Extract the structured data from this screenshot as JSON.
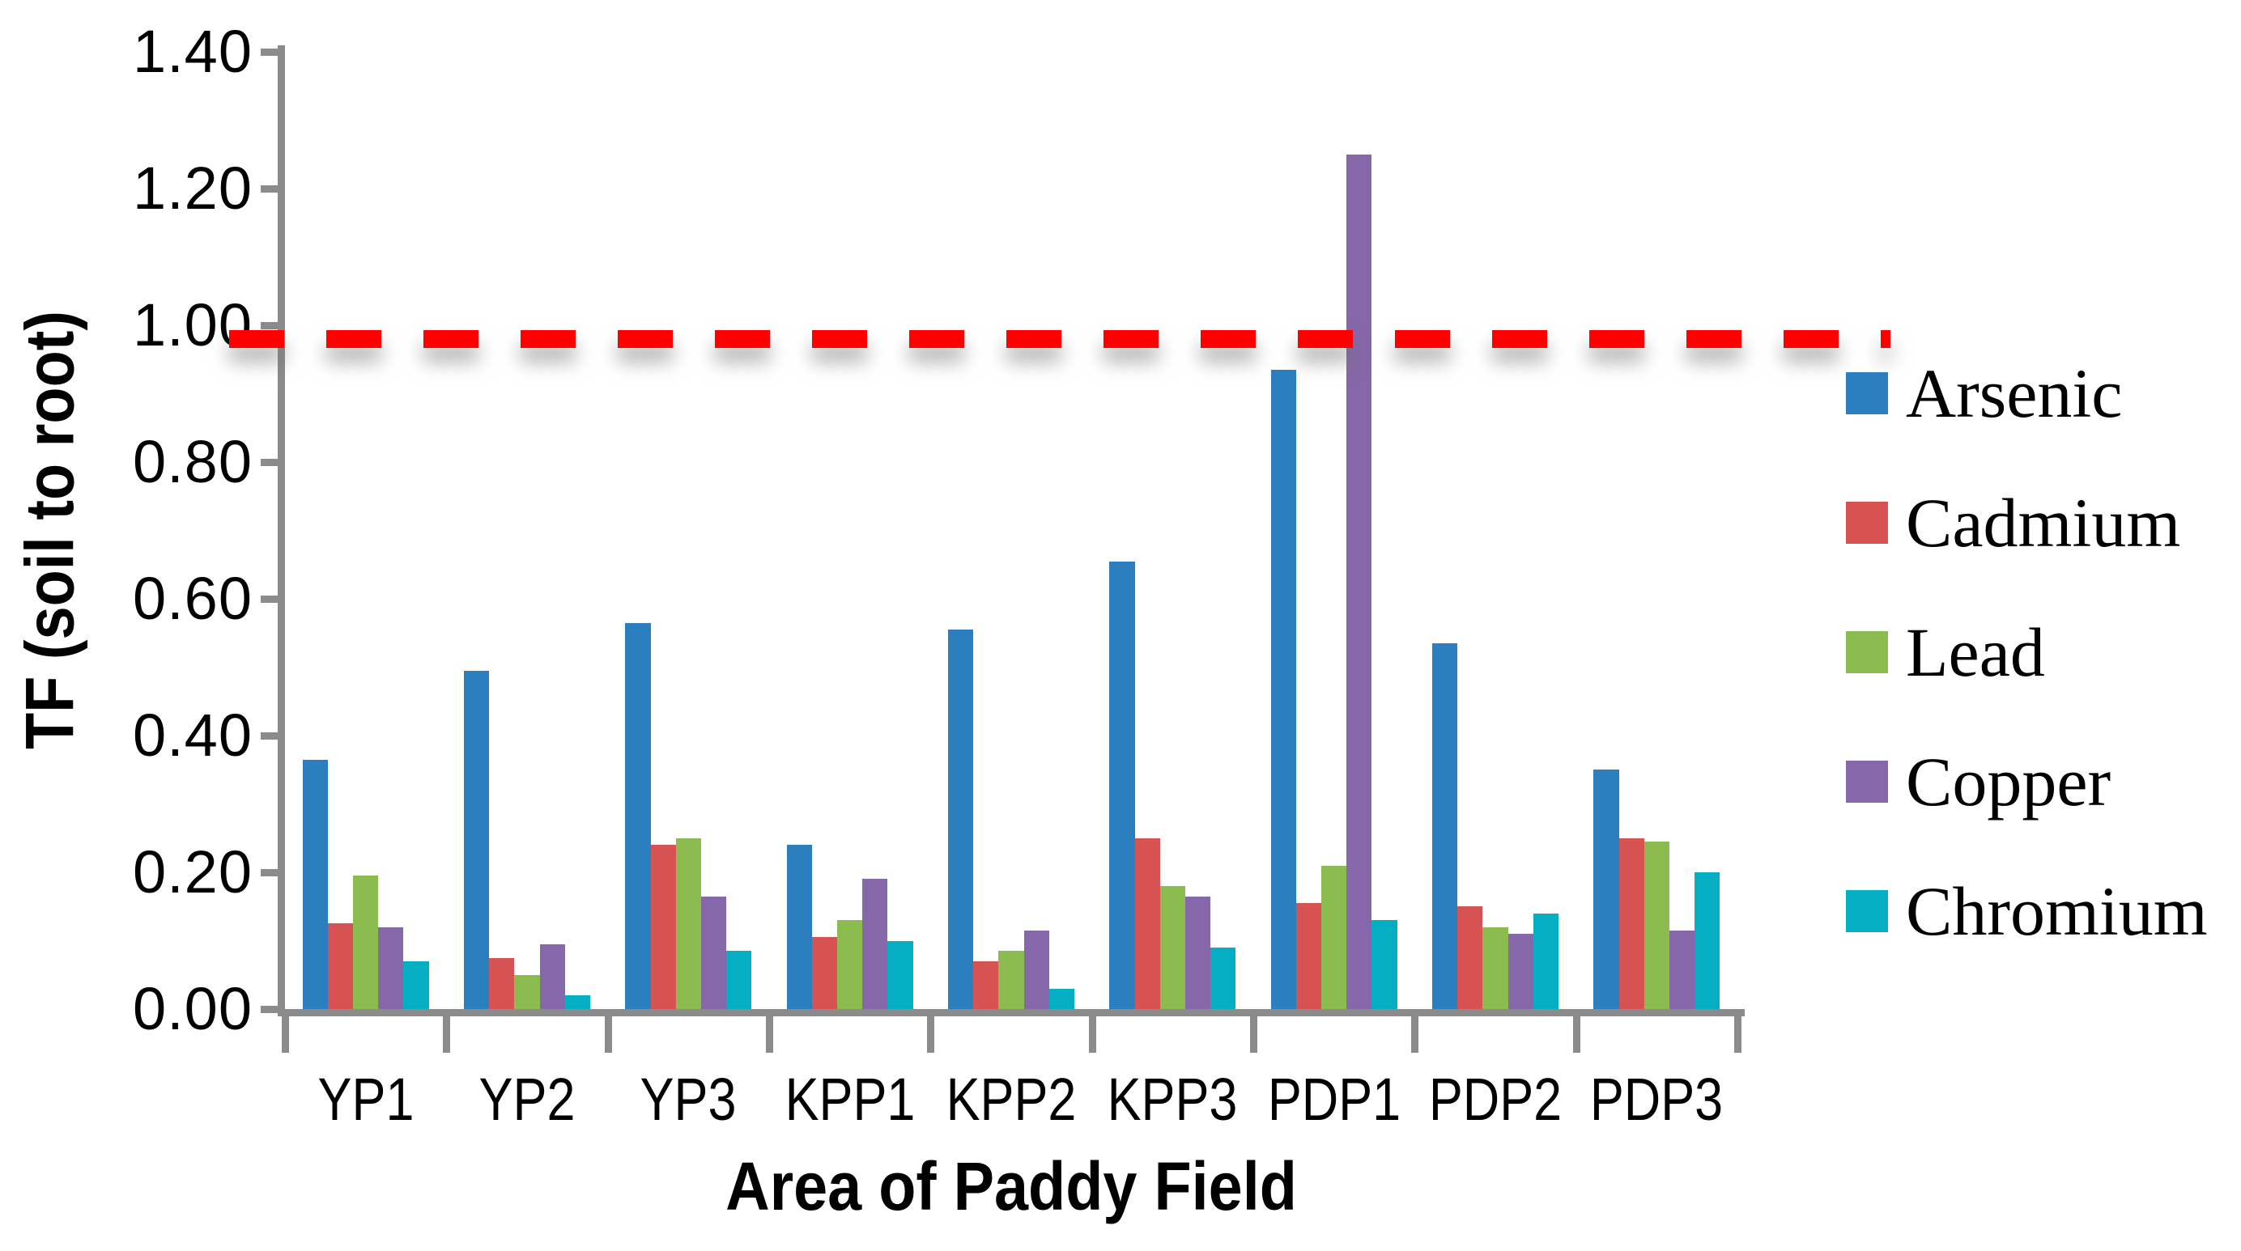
{
  "chart_data": {
    "type": "bar",
    "title": "",
    "xlabel": "Area of Paddy Field",
    "ylabel": "TF (soil to root)",
    "categories": [
      "YP1",
      "YP2",
      "YP3",
      "KPP1",
      "KPP2",
      "KPP3",
      "PDP1",
      "PDP2",
      "PDP3"
    ],
    "series": [
      {
        "name": "Arsenic",
        "color": "#2B7FBF",
        "values": [
          0.365,
          0.495,
          0.565,
          0.24,
          0.555,
          0.655,
          0.935,
          0.535,
          0.35
        ]
      },
      {
        "name": "Cadmium",
        "color": "#D75252",
        "values": [
          0.125,
          0.075,
          0.24,
          0.105,
          0.07,
          0.25,
          0.155,
          0.15,
          0.25
        ]
      },
      {
        "name": "Lead",
        "color": "#8CBC50",
        "values": [
          0.195,
          0.05,
          0.25,
          0.13,
          0.085,
          0.18,
          0.21,
          0.12,
          0.245
        ]
      },
      {
        "name": "Copper",
        "color": "#8667A9",
        "values": [
          0.12,
          0.095,
          0.165,
          0.19,
          0.115,
          0.165,
          1.25,
          0.11,
          0.115
        ]
      },
      {
        "name": "Chromium",
        "color": "#06AEC4",
        "values": [
          0.07,
          0.02,
          0.085,
          0.1,
          0.03,
          0.09,
          0.13,
          0.14,
          0.2
        ]
      }
    ],
    "ylim": [
      0,
      1.4
    ],
    "yticks": [
      "0.00",
      "0.20",
      "0.40",
      "0.60",
      "0.80",
      "1.00",
      "1.20",
      "1.40"
    ],
    "grid": false,
    "legend_position": "right",
    "threshold_line": {
      "value": 0.98,
      "color": "#FF0000",
      "style": "dashed"
    }
  },
  "axis": {
    "color": "#8B8B8B"
  },
  "background": "#FFFFFF"
}
